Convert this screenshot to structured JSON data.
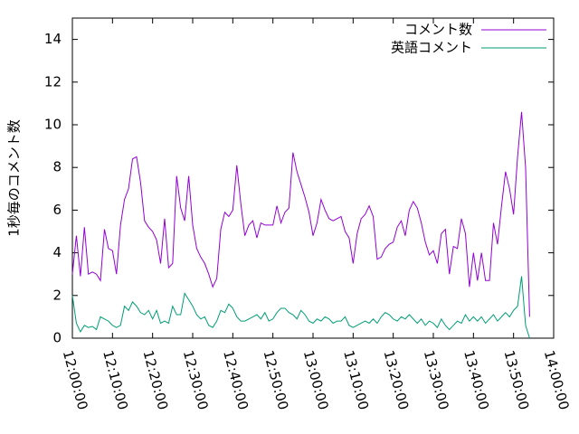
{
  "chart_data": {
    "type": "line",
    "ylabel": "1秒毎のコメント数",
    "x": [
      "12:00:00",
      "12:01:00",
      "12:02:00",
      "12:03:00",
      "12:04:00",
      "12:05:00",
      "12:06:00",
      "12:07:00",
      "12:08:00",
      "12:09:00",
      "12:10:00",
      "12:11:00",
      "12:12:00",
      "12:13:00",
      "12:14:00",
      "12:15:00",
      "12:16:00",
      "12:17:00",
      "12:18:00",
      "12:19:00",
      "12:20:00",
      "12:21:00",
      "12:22:00",
      "12:23:00",
      "12:24:00",
      "12:25:00",
      "12:26:00",
      "12:27:00",
      "12:28:00",
      "12:29:00",
      "12:30:00",
      "12:31:00",
      "12:32:00",
      "12:33:00",
      "12:34:00",
      "12:35:00",
      "12:36:00",
      "12:37:00",
      "12:38:00",
      "12:39:00",
      "12:40:00",
      "12:41:00",
      "12:42:00",
      "12:43:00",
      "12:44:00",
      "12:45:00",
      "12:46:00",
      "12:47:00",
      "12:48:00",
      "12:49:00",
      "12:50:00",
      "12:51:00",
      "12:52:00",
      "12:53:00",
      "12:54:00",
      "12:55:00",
      "12:56:00",
      "12:57:00",
      "12:58:00",
      "12:59:00",
      "13:00:00",
      "13:01:00",
      "13:02:00",
      "13:03:00",
      "13:04:00",
      "13:05:00",
      "13:06:00",
      "13:07:00",
      "13:08:00",
      "13:09:00",
      "13:10:00",
      "13:11:00",
      "13:12:00",
      "13:13:00",
      "13:14:00",
      "13:15:00",
      "13:16:00",
      "13:17:00",
      "13:18:00",
      "13:19:00",
      "13:20:00",
      "13:21:00",
      "13:22:00",
      "13:23:00",
      "13:24:00",
      "13:25:00",
      "13:26:00",
      "13:27:00",
      "13:28:00",
      "13:29:00",
      "13:30:00",
      "13:31:00",
      "13:32:00",
      "13:33:00",
      "13:34:00",
      "13:35:00",
      "13:36:00",
      "13:37:00",
      "13:38:00",
      "13:39:00",
      "13:40:00",
      "13:41:00",
      "13:42:00",
      "13:43:00",
      "13:44:00",
      "13:45:00",
      "13:46:00",
      "13:47:00",
      "13:48:00",
      "13:49:00",
      "13:50:00",
      "13:51:00",
      "13:52:00",
      "13:53:00",
      "13:54:00"
    ],
    "series": [
      {
        "name": "コメント数",
        "color": "#9400d3",
        "values": [
          3.0,
          4.8,
          2.9,
          5.2,
          3.0,
          3.1,
          3.0,
          2.7,
          5.1,
          4.2,
          4.1,
          3.0,
          5.3,
          6.5,
          7.0,
          8.4,
          8.5,
          7.3,
          5.5,
          5.2,
          5.0,
          4.6,
          3.5,
          5.6,
          3.3,
          3.5,
          7.6,
          6.1,
          5.5,
          7.6,
          5.3,
          4.2,
          3.8,
          3.5,
          3.0,
          2.4,
          2.8,
          5.1,
          5.9,
          5.7,
          6.0,
          8.1,
          6.3,
          4.8,
          5.3,
          5.5,
          4.7,
          5.4,
          5.3,
          5.3,
          5.3,
          6.2,
          5.4,
          5.9,
          6.1,
          8.7,
          7.8,
          7.2,
          6.6,
          5.9,
          4.8,
          5.4,
          6.5,
          6.0,
          5.6,
          5.5,
          5.6,
          5.7,
          5.0,
          4.7,
          3.5,
          4.9,
          5.6,
          5.8,
          6.2,
          5.7,
          3.7,
          3.8,
          4.2,
          4.4,
          4.5,
          5.2,
          5.5,
          4.8,
          6.0,
          6.4,
          6.1,
          5.4,
          4.5,
          3.9,
          4.1,
          3.5,
          4.9,
          5.1,
          3.0,
          4.3,
          4.2,
          5.6,
          4.9,
          2.4,
          4.0,
          2.7,
          4.0,
          2.7,
          2.7,
          5.4,
          4.4,
          6.2,
          7.8,
          7.0,
          5.8,
          8.5,
          10.6,
          8.0,
          1.0
        ]
      },
      {
        "name": "英語コメント",
        "color": "#009e73",
        "values": [
          2.0,
          0.7,
          0.3,
          0.6,
          0.5,
          0.55,
          0.4,
          1.0,
          0.9,
          0.8,
          0.6,
          0.5,
          0.6,
          1.5,
          1.3,
          1.7,
          1.5,
          1.2,
          1.1,
          1.3,
          0.9,
          1.3,
          0.7,
          0.8,
          0.7,
          1.5,
          1.1,
          1.1,
          2.1,
          1.8,
          1.5,
          1.1,
          0.9,
          1.0,
          0.6,
          0.5,
          0.8,
          1.3,
          1.2,
          1.6,
          1.4,
          1.0,
          0.8,
          0.8,
          0.9,
          1.0,
          1.1,
          0.9,
          1.2,
          0.8,
          0.9,
          1.2,
          1.4,
          1.4,
          1.2,
          1.1,
          0.9,
          1.3,
          1.1,
          0.8,
          0.7,
          0.9,
          0.8,
          1.0,
          0.9,
          0.7,
          0.8,
          0.8,
          1.0,
          0.6,
          0.5,
          0.6,
          0.7,
          0.8,
          0.7,
          0.9,
          0.7,
          1.0,
          1.2,
          1.1,
          0.9,
          0.8,
          1.0,
          0.9,
          1.1,
          0.9,
          0.7,
          0.9,
          0.6,
          0.8,
          0.7,
          0.5,
          0.9,
          0.6,
          0.4,
          0.6,
          0.8,
          0.7,
          1.1,
          0.8,
          1.0,
          0.8,
          1.0,
          0.7,
          0.9,
          1.1,
          0.8,
          1.0,
          1.2,
          1.0,
          1.3,
          1.5,
          2.9,
          0.6,
          0.0
        ]
      }
    ],
    "xlim": [
      "12:00:00",
      "14:00:00"
    ],
    "xticks": [
      "12:00:00",
      "12:10:00",
      "12:20:00",
      "12:30:00",
      "12:40:00",
      "12:50:00",
      "13:00:00",
      "13:10:00",
      "13:20:00",
      "13:30:00",
      "13:40:00",
      "13:50:00",
      "14:00:00"
    ],
    "ylim": [
      0,
      15
    ],
    "yticks": [
      0,
      2,
      4,
      6,
      8,
      10,
      12,
      14
    ],
    "legend": "top-right"
  }
}
